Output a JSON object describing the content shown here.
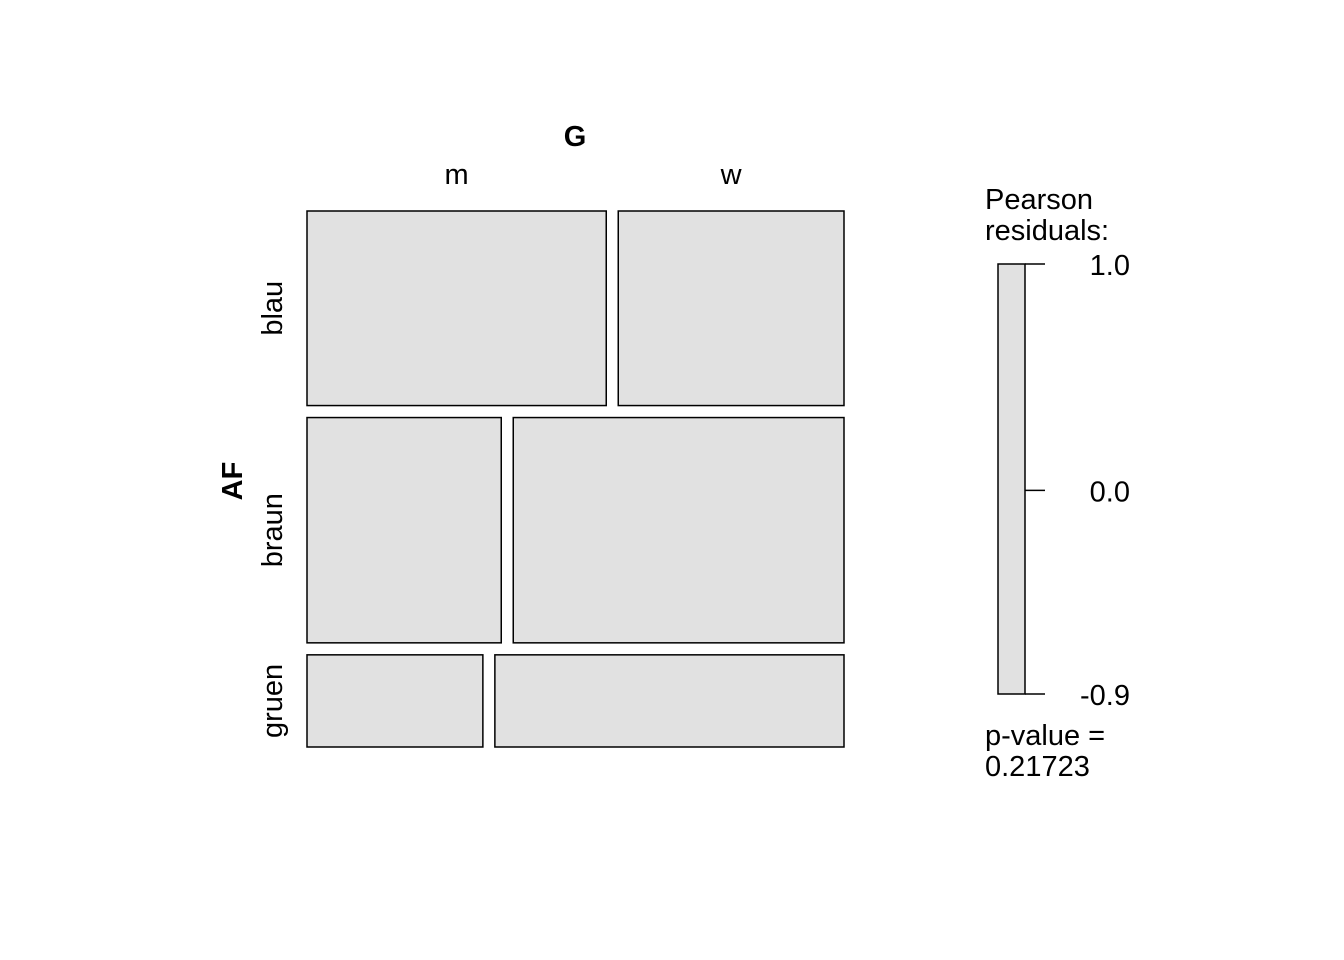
{
  "chart_data": {
    "type": "mosaic",
    "column_variable": "G",
    "row_variable": "AF",
    "columns": [
      "m",
      "w"
    ],
    "rows": [
      {
        "label": "blau",
        "share": 0.38,
        "split": [
          0.57,
          0.43
        ]
      },
      {
        "label": "braun",
        "share": 0.44,
        "split": [
          0.37,
          0.63
        ]
      },
      {
        "label": "gruen",
        "share": 0.18,
        "split": [
          0.335,
          0.665
        ]
      }
    ],
    "cell_fill": "#e1e1e1",
    "legend": {
      "title_line1": "Pearson",
      "title_line2": "residuals:",
      "ticks": [
        {
          "value": 1.0,
          "label": "1.0"
        },
        {
          "value": 0.0,
          "label": "0.0"
        },
        {
          "value": -0.9,
          "label": "-0.9"
        }
      ],
      "range": [
        -0.9,
        1.0
      ],
      "pvalue_line1": "p-value =",
      "pvalue_line2": "0.21723"
    }
  }
}
